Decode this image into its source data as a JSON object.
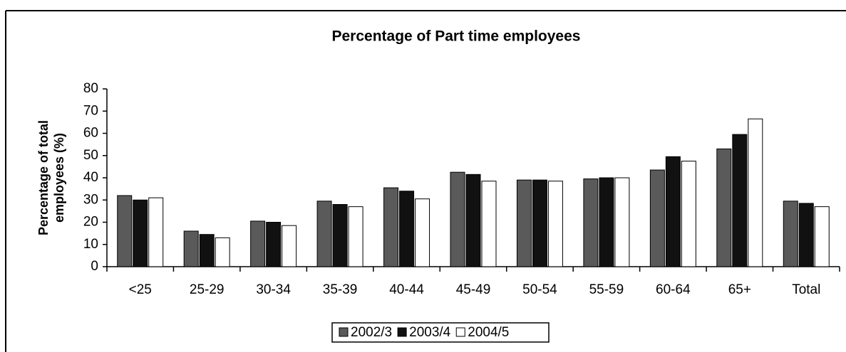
{
  "chart_data": {
    "type": "bar",
    "title": "Percentage of Part time employees",
    "y_label": [
      "Percentage of total",
      "employees (%)"
    ],
    "categories": [
      "<25",
      "25-29",
      "30-34",
      "35-39",
      "40-44",
      "45-49",
      "50-54",
      "55-59",
      "60-64",
      "65+",
      "Total"
    ],
    "series": [
      {
        "name": "2002/3",
        "color": "#5a5a5a",
        "values": [
          32,
          16,
          20.5,
          29.5,
          35.5,
          42.5,
          39,
          39.5,
          43.5,
          53,
          29.5
        ]
      },
      {
        "name": "2003/4",
        "color": "#111111",
        "values": [
          30,
          14.5,
          20,
          28,
          34,
          41.5,
          39,
          40,
          49.5,
          59.5,
          28.5
        ]
      },
      {
        "name": "2004/5",
        "color": "#ffffff",
        "values": [
          31,
          13,
          18.5,
          27,
          30.5,
          38.5,
          38.5,
          40,
          47.5,
          66.5,
          27
        ]
      }
    ],
    "ylim": [
      0,
      80
    ],
    "yticks": [
      0,
      10,
      20,
      30,
      40,
      50,
      60,
      70,
      80
    ],
    "grid": false,
    "legend": "bottom"
  }
}
